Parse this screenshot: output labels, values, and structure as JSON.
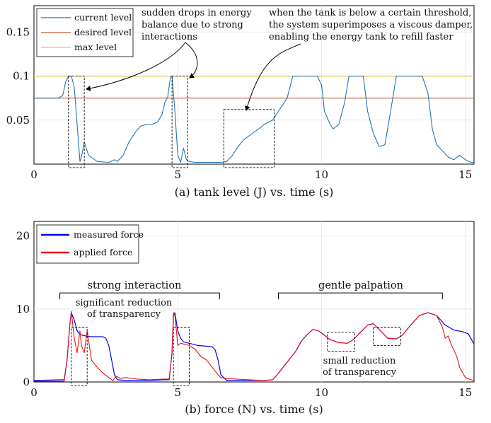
{
  "chart_data": [
    {
      "type": "line",
      "caption": "(a) tank level (J) vs. time (s)",
      "xlim": [
        0,
        15.3
      ],
      "ylim": [
        0,
        0.18
      ],
      "xticks": [
        "0",
        "5",
        "10",
        "15"
      ],
      "yticks": [
        "0.05",
        "0.1",
        "0.15"
      ],
      "ytick_values": [
        0.05,
        0.1,
        0.15
      ],
      "legend_position": "top-left",
      "series": [
        {
          "name": "current level",
          "color": "#1f77b4",
          "x": [
            0,
            0.85,
            1.0,
            1.1,
            1.2,
            1.3,
            1.4,
            1.5,
            1.6,
            1.65,
            1.75,
            1.9,
            2.2,
            2.6,
            2.8,
            2.9,
            3.1,
            3.3,
            3.5,
            3.7,
            3.9,
            4.1,
            4.3,
            4.45,
            4.55,
            4.65,
            4.75,
            4.8,
            4.9,
            5.0,
            5.1,
            5.2,
            5.3,
            5.4,
            5.6,
            5.9,
            6.2,
            6.5,
            6.7,
            6.9,
            7.1,
            7.3,
            7.6,
            7.9,
            8.0,
            8.3,
            8.6,
            8.8,
            9.0,
            9.1,
            9.3,
            9.6,
            9.85,
            10.0,
            10.1,
            10.3,
            10.4,
            10.6,
            10.8,
            10.95,
            11.05,
            11.2,
            11.45,
            11.6,
            11.8,
            12.0,
            12.2,
            12.4,
            12.6,
            12.8,
            12.95,
            13.0,
            13.1,
            13.3,
            13.5,
            13.7,
            13.85,
            14.0,
            14.2,
            14.4,
            14.6,
            14.8,
            15.0,
            15.2,
            15.3
          ],
          "y": [
            0.075,
            0.075,
            0.078,
            0.093,
            0.1,
            0.1,
            0.088,
            0.045,
            0.003,
            0.008,
            0.025,
            0.01,
            0.003,
            0.002,
            0.005,
            0.003,
            0.01,
            0.025,
            0.035,
            0.043,
            0.045,
            0.045,
            0.048,
            0.056,
            0.07,
            0.076,
            0.1,
            0.1,
            0.06,
            0.01,
            0.002,
            0.018,
            0.005,
            0.003,
            0.002,
            0.002,
            0.002,
            0.002,
            0.003,
            0.01,
            0.02,
            0.028,
            0.035,
            0.042,
            0.045,
            0.05,
            0.065,
            0.075,
            0.1,
            0.1,
            0.1,
            0.1,
            0.1,
            0.09,
            0.06,
            0.045,
            0.04,
            0.045,
            0.07,
            0.1,
            0.1,
            0.1,
            0.1,
            0.06,
            0.035,
            0.02,
            0.022,
            0.06,
            0.1,
            0.1,
            0.1,
            0.1,
            0.1,
            0.1,
            0.1,
            0.08,
            0.04,
            0.022,
            0.015,
            0.008,
            0.005,
            0.01,
            0.005,
            0.002,
            0.002
          ]
        },
        {
          "name": "desired level",
          "color": "#c8582a",
          "x": [
            0,
            15.3
          ],
          "y": [
            0.075,
            0.075
          ]
        },
        {
          "name": "max level",
          "color": "#e8c24a",
          "x": [
            0,
            15.3
          ],
          "y": [
            0.1,
            0.1
          ]
        }
      ],
      "annotations": [
        "sudden drops in energy balance due to strong interactions",
        "when the tank is below a certain threshold, the system superimposes a viscous damper, enabling the energy tank to refill faster"
      ],
      "highlight_boxes": [
        {
          "x": [
            1.2,
            1.75
          ],
          "y": [
            -0.004,
            0.1
          ]
        },
        {
          "x": [
            4.8,
            5.35
          ],
          "y": [
            -0.004,
            0.1
          ]
        },
        {
          "x": [
            6.6,
            8.35
          ],
          "y": [
            -0.004,
            0.062
          ]
        }
      ]
    },
    {
      "type": "line",
      "caption": "(b) force (N) vs. time (s)",
      "xlim": [
        0,
        15.3
      ],
      "ylim": [
        0,
        22
      ],
      "xticks": [
        "0",
        "5",
        "10",
        "15"
      ],
      "yticks": [
        "0",
        "10",
        "20"
      ],
      "ytick_values": [
        0,
        10,
        20
      ],
      "legend_position": "top-left",
      "series": [
        {
          "name": "measured force",
          "color": "#0000ff",
          "x": [
            0,
            1.05,
            1.15,
            1.25,
            1.3,
            1.4,
            1.5,
            1.6,
            1.7,
            1.8,
            2.0,
            2.2,
            2.4,
            2.5,
            2.6,
            2.7,
            2.8,
            2.9,
            3.2,
            3.6,
            4.0,
            4.5,
            4.7,
            4.8,
            4.85,
            4.9,
            5.0,
            5.1,
            5.2,
            5.4,
            5.7,
            6.0,
            6.2,
            6.3,
            6.4,
            6.5,
            6.7,
            7.0,
            7.5,
            8.0,
            8.3,
            8.5,
            8.7,
            8.9,
            9.1,
            9.3,
            9.5,
            9.7,
            9.9,
            10.1,
            10.3,
            10.6,
            10.9,
            11.1,
            11.4,
            11.6,
            11.8,
            12.0,
            12.3,
            12.6,
            12.8,
            13.1,
            13.4,
            13.7,
            14.0,
            14.3,
            14.6,
            14.9,
            15.1,
            15.3
          ],
          "y": [
            0.2,
            0.3,
            3,
            8,
            9.5,
            8.5,
            7,
            6.5,
            6.4,
            6.3,
            6.2,
            6.2,
            6.2,
            6.0,
            5.0,
            3.0,
            1.0,
            0.3,
            0.2,
            0.2,
            0.2,
            0.3,
            0.3,
            4,
            9,
            9.5,
            7,
            6,
            5.5,
            5.3,
            5.0,
            4.9,
            4.8,
            4.4,
            3.0,
            1.0,
            0.2,
            0.2,
            0.2,
            0.2,
            0.3,
            1.2,
            2.2,
            3.2,
            4.2,
            5.6,
            6.5,
            7.2,
            7.0,
            6.4,
            5.8,
            5.4,
            5.3,
            5.8,
            7.0,
            7.8,
            8.0,
            7.2,
            6.0,
            5.9,
            6.4,
            7.8,
            9.1,
            9.5,
            9.1,
            7.8,
            7.1,
            6.9,
            6.6,
            5.2
          ]
        },
        {
          "name": "applied force",
          "color": "#ee1111",
          "x": [
            0,
            1.05,
            1.15,
            1.25,
            1.3,
            1.4,
            1.5,
            1.6,
            1.65,
            1.75,
            1.85,
            2.0,
            2.2,
            2.4,
            2.6,
            2.75,
            2.85,
            3.0,
            3.2,
            3.6,
            4.0,
            4.5,
            4.7,
            4.8,
            4.85,
            4.9,
            5.0,
            5.1,
            5.2,
            5.4,
            5.6,
            5.8,
            6.0,
            6.2,
            6.4,
            6.5,
            6.7,
            7.0,
            7.5,
            8.0,
            8.3,
            8.5,
            8.7,
            8.9,
            9.1,
            9.3,
            9.5,
            9.7,
            9.9,
            10.1,
            10.3,
            10.6,
            10.9,
            11.1,
            11.4,
            11.6,
            11.8,
            12.0,
            12.3,
            12.6,
            12.8,
            13.1,
            13.4,
            13.7,
            14.0,
            14.2,
            14.3,
            14.4,
            14.5,
            14.7,
            14.8,
            15.0,
            15.2,
            15.3
          ],
          "y": [
            0.1,
            0.1,
            3,
            8,
            9.7,
            6,
            4,
            7,
            5,
            4,
            7,
            3,
            2,
            1.2,
            0.6,
            0.2,
            0.8,
            0.5,
            0.6,
            0.4,
            0.3,
            0.4,
            0.4,
            4,
            9.5,
            9.2,
            5,
            5.3,
            5.2,
            5.0,
            4.5,
            3.5,
            3.0,
            2.0,
            1.0,
            0.6,
            0.5,
            0.4,
            0.3,
            0.2,
            0.3,
            1.2,
            2.2,
            3.2,
            4.2,
            5.6,
            6.5,
            7.2,
            7.0,
            6.4,
            5.8,
            5.4,
            5.3,
            5.8,
            7.0,
            7.8,
            8.0,
            7.2,
            6.0,
            5.9,
            6.4,
            7.8,
            9.1,
            9.5,
            9.1,
            7.5,
            6.0,
            6.3,
            5.2,
            3.5,
            2.0,
            0.6,
            0.3,
            0.2
          ]
        }
      ],
      "annotations": [
        "strong interaction",
        "gentle palpation",
        "significant reduction",
        "of transparency",
        "small reduction",
        "of transparency"
      ],
      "brackets": [
        {
          "x": [
            0.9,
            6.45
          ],
          "y": 12.2
        },
        {
          "x": [
            8.5,
            14.2
          ],
          "y": 12.2
        }
      ],
      "highlight_boxes": [
        {
          "x": [
            1.3,
            1.85
          ],
          "y": [
            -0.5,
            7.5
          ]
        },
        {
          "x": [
            4.85,
            5.4
          ],
          "y": [
            -0.5,
            7.5
          ]
        },
        {
          "x": [
            10.2,
            11.15
          ],
          "y": [
            4.2,
            6.8
          ]
        },
        {
          "x": [
            11.8,
            12.75
          ],
          "y": [
            5.0,
            7.5
          ]
        }
      ]
    }
  ]
}
